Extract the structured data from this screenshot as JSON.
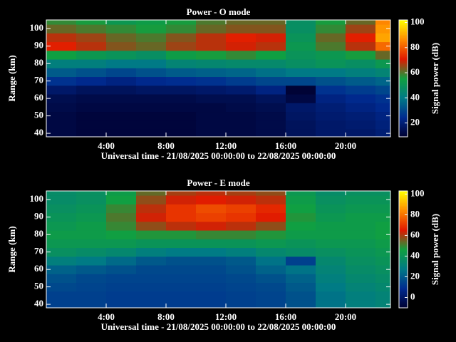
{
  "chart_data": [
    {
      "type": "heatmap",
      "title": "Power - O mode",
      "xlabel": "Universal time - 21/08/2025 00:00:00 to 22/08/2025 00:00:00",
      "ylabel": "Range (km)",
      "colorbar_label": "Signal power (dB)",
      "xlim": [
        0,
        23
      ],
      "ylim": [
        38,
        105
      ],
      "xticks": [
        {
          "value": 4,
          "label": "4:00"
        },
        {
          "value": 8,
          "label": "8:00"
        },
        {
          "value": 12,
          "label": "12:00"
        },
        {
          "value": 16,
          "label": "16:00"
        },
        {
          "value": 20,
          "label": "20:00"
        }
      ],
      "yticks": [
        40,
        50,
        60,
        70,
        80,
        90,
        100
      ],
      "xbins": [
        0,
        2,
        4,
        6,
        8,
        10,
        12,
        14,
        16,
        18,
        20,
        22,
        23
      ],
      "ybins": [
        38,
        42.5,
        47.5,
        52.5,
        57.5,
        62.5,
        67.5,
        72.5,
        77.5,
        82.5,
        87.5,
        92.5,
        97.5,
        102.5,
        105
      ],
      "cbarlim": [
        9,
        102
      ],
      "cbarticks": [
        20,
        40,
        60,
        80,
        100
      ],
      "colormap": [
        "#000030",
        "#002a90",
        "#007a86",
        "#10a040",
        "#e01800",
        "#ff8a00",
        "#ffff00"
      ],
      "z": [
        [
          12,
          11,
          11,
          11,
          11,
          12,
          12,
          13,
          16,
          18,
          18,
          20
        ],
        [
          12,
          11,
          11,
          11,
          11,
          12,
          12,
          13,
          16,
          18,
          19,
          21
        ],
        [
          12,
          11,
          11,
          11,
          11,
          12,
          12,
          13,
          17,
          19,
          20,
          22
        ],
        [
          13,
          12,
          12,
          12,
          12,
          12,
          13,
          14,
          18,
          20,
          22,
          24
        ],
        [
          14,
          13,
          13,
          13,
          13,
          14,
          14,
          16,
          12,
          22,
          24,
          26
        ],
        [
          18,
          16,
          16,
          17,
          17,
          18,
          19,
          22,
          10,
          26,
          28,
          30
        ],
        [
          26,
          24,
          22,
          24,
          25,
          26,
          28,
          30,
          30,
          32,
          34,
          36
        ],
        [
          34,
          32,
          30,
          32,
          34,
          35,
          36,
          38,
          40,
          40,
          42,
          44
        ],
        [
          42,
          42,
          40,
          40,
          44,
          45,
          46,
          46,
          48,
          50,
          48,
          52
        ],
        [
          55,
          52,
          50,
          48,
          54,
          56,
          58,
          55,
          50,
          52,
          56,
          62
        ],
        [
          72,
          68,
          64,
          62,
          66,
          68,
          70,
          68,
          52,
          60,
          68,
          82
        ],
        [
          68,
          66,
          62,
          60,
          64,
          68,
          72,
          70,
          50,
          62,
          72,
          90
        ],
        [
          62,
          60,
          58,
          56,
          58,
          62,
          64,
          64,
          48,
          58,
          66,
          88
        ],
        [
          58,
          56,
          52,
          54,
          56,
          60,
          62,
          62,
          48,
          56,
          62,
          86
        ]
      ]
    },
    {
      "type": "heatmap",
      "title": "Power - E mode",
      "xlabel": "Universal time - 21/08/2025 00:00:00 to 22/08/2025 00:00:00",
      "ylabel": "Range (km)",
      "colorbar_label": "Signal power (dB)",
      "xlim": [
        0,
        23
      ],
      "ylim": [
        38,
        105
      ],
      "xticks": [
        {
          "value": 4,
          "label": "4:00"
        },
        {
          "value": 8,
          "label": "8:00"
        },
        {
          "value": 12,
          "label": "12:00"
        },
        {
          "value": 16,
          "label": "16:00"
        },
        {
          "value": 20,
          "label": "20:00"
        }
      ],
      "yticks": [
        40,
        50,
        60,
        70,
        80,
        90,
        100
      ],
      "xbins": [
        0,
        2,
        4,
        6,
        8,
        10,
        12,
        14,
        16,
        18,
        20,
        22,
        23
      ],
      "ybins": [
        38,
        42.5,
        47.5,
        52.5,
        57.5,
        62.5,
        67.5,
        72.5,
        77.5,
        82.5,
        87.5,
        92.5,
        97.5,
        102.5,
        105
      ],
      "cbarlim": [
        -10,
        103
      ],
      "cbarticks": [
        0,
        20,
        40,
        60,
        80,
        100
      ],
      "colormap": [
        "#000030",
        "#002a90",
        "#007a86",
        "#10a040",
        "#e01800",
        "#ff8a00",
        "#ffff00"
      ],
      "z": [
        [
          14,
          14,
          13,
          13,
          13,
          13,
          14,
          15,
          18,
          26,
          30,
          32
        ],
        [
          14,
          14,
          13,
          13,
          13,
          13,
          14,
          15,
          18,
          26,
          30,
          32
        ],
        [
          16,
          15,
          14,
          14,
          14,
          14,
          15,
          16,
          20,
          28,
          32,
          34
        ],
        [
          18,
          16,
          15,
          15,
          15,
          15,
          16,
          18,
          22,
          30,
          34,
          36
        ],
        [
          22,
          20,
          18,
          16,
          16,
          16,
          18,
          22,
          26,
          32,
          36,
          38
        ],
        [
          30,
          28,
          24,
          20,
          18,
          18,
          20,
          26,
          14,
          34,
          38,
          40
        ],
        [
          38,
          36,
          34,
          30,
          28,
          28,
          30,
          34,
          36,
          38,
          40,
          42
        ],
        [
          42,
          42,
          42,
          40,
          40,
          40,
          40,
          42,
          40,
          42,
          42,
          44
        ],
        [
          44,
          44,
          46,
          48,
          48,
          50,
          50,
          48,
          44,
          44,
          44,
          46
        ],
        [
          42,
          44,
          50,
          58,
          62,
          64,
          62,
          58,
          46,
          44,
          44,
          46
        ],
        [
          40,
          42,
          52,
          64,
          70,
          72,
          70,
          66,
          48,
          42,
          44,
          44
        ],
        [
          38,
          40,
          50,
          62,
          70,
          74,
          72,
          68,
          46,
          40,
          42,
          42
        ],
        [
          36,
          38,
          46,
          58,
          64,
          66,
          64,
          62,
          44,
          38,
          40,
          40
        ],
        [
          36,
          38,
          44,
          54,
          60,
          62,
          60,
          58,
          42,
          36,
          38,
          38
        ]
      ]
    }
  ]
}
